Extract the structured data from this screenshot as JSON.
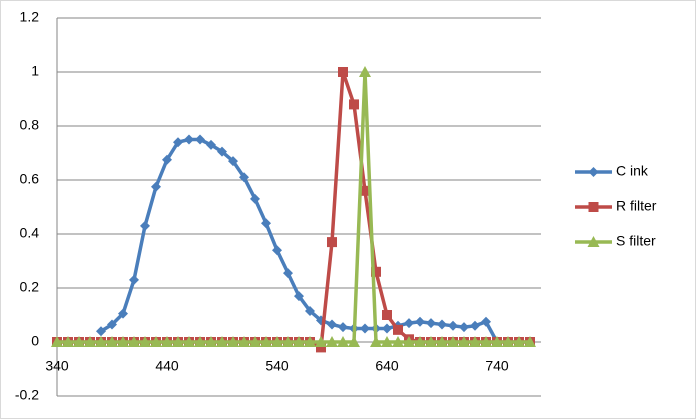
{
  "chart_data": {
    "type": "line",
    "x": [
      340,
      350,
      360,
      370,
      380,
      390,
      400,
      410,
      420,
      430,
      440,
      450,
      460,
      470,
      480,
      490,
      500,
      510,
      520,
      530,
      540,
      550,
      560,
      570,
      580,
      590,
      600,
      610,
      620,
      630,
      640,
      650,
      660,
      670,
      680,
      690,
      700,
      710,
      720,
      730,
      740,
      750,
      760,
      770
    ],
    "series": [
      {
        "name": "C ink",
        "color": "#4a7ebb",
        "marker": "diamond",
        "values": [
          null,
          null,
          null,
          null,
          0.04,
          0.065,
          0.105,
          0.23,
          0.43,
          0.575,
          0.675,
          0.74,
          0.75,
          0.75,
          0.73,
          0.705,
          0.67,
          0.61,
          0.53,
          0.44,
          0.34,
          0.255,
          0.17,
          0.115,
          0.08,
          0.065,
          0.055,
          0.05,
          0.05,
          0.05,
          0.05,
          0.06,
          0.07,
          0.075,
          0.07,
          0.065,
          0.06,
          0.055,
          0.06,
          0.075,
          0,
          null,
          null,
          null
        ]
      },
      {
        "name": "R filter",
        "color": "#be4b48",
        "marker": "square",
        "values": [
          0,
          0,
          0,
          0,
          0,
          0,
          0,
          0,
          0,
          0,
          0,
          0,
          0,
          0,
          0,
          0,
          0,
          0,
          0,
          0,
          0,
          0,
          0,
          0,
          -0.02,
          0.37,
          1.0,
          0.88,
          0.56,
          0.26,
          0.1,
          0.045,
          0.01,
          0,
          0,
          0,
          0,
          0,
          0,
          0,
          0,
          0,
          0,
          0
        ]
      },
      {
        "name": "S filter",
        "color": "#98b954",
        "marker": "triangle",
        "values": [
          0,
          0,
          0,
          0,
          0,
          0,
          0,
          0,
          0,
          0,
          0,
          0,
          0,
          0,
          0,
          0,
          0,
          0,
          0,
          0,
          0,
          0,
          0,
          0,
          0,
          0,
          0,
          0,
          1.0,
          0,
          0,
          0,
          0,
          0,
          0,
          0,
          0,
          0,
          0,
          0,
          0,
          0,
          0,
          0
        ]
      }
    ],
    "xlim": [
      340,
      780
    ],
    "xticks": [
      340,
      440,
      540,
      640,
      740
    ],
    "ylim": [
      -0.2,
      1.2
    ],
    "yticks": [
      -0.2,
      0,
      0.2,
      0.4,
      0.6,
      0.8,
      1,
      1.2
    ],
    "grid": true,
    "legend": "right"
  }
}
